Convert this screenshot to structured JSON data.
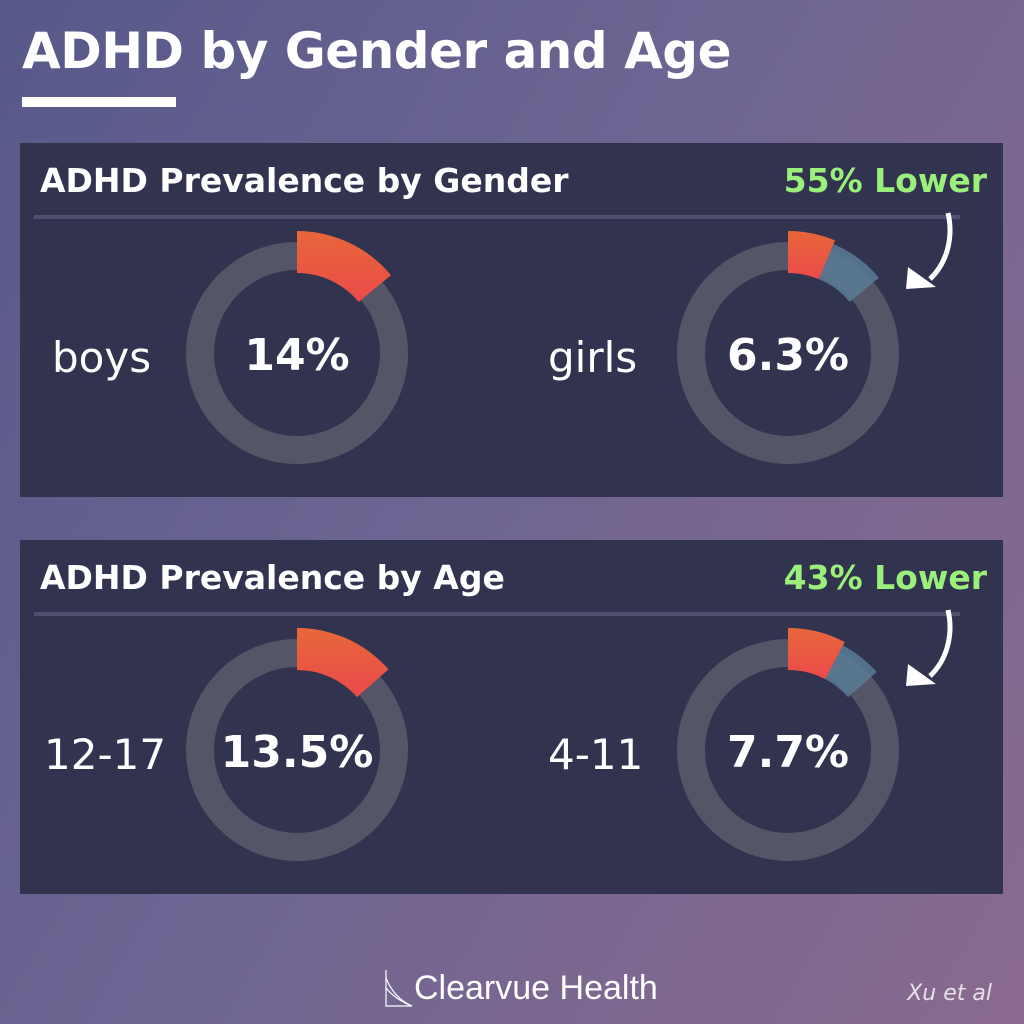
{
  "header": {
    "title": "ADHD by Gender and Age"
  },
  "colors": {
    "accent_green": "#9af07a",
    "segment_red": "#ea4a4a",
    "segment_orange": "#e8673a",
    "ghost_blue": "#5a7d96",
    "track": "#545566",
    "panel": "#32334f"
  },
  "chart_data": [
    {
      "type": "pie",
      "variant": "donut",
      "title": "ADHD Prevalence by Gender",
      "annotation": "55% Lower",
      "categories": [
        "boys",
        "girls"
      ],
      "values": [
        14,
        6.3
      ],
      "value_labels": [
        "14%",
        "6.3%"
      ],
      "unit": "%",
      "max": 100,
      "comparison_ghost": 14
    },
    {
      "type": "pie",
      "variant": "donut",
      "title": "ADHD Prevalence by Age",
      "annotation": "43% Lower",
      "categories": [
        "12-17",
        "4-11"
      ],
      "values": [
        13.5,
        7.7
      ],
      "value_labels": [
        "13.5%",
        "7.7%"
      ],
      "unit": "%",
      "max": 100,
      "comparison_ghost": 13.5
    }
  ],
  "footer": {
    "brand": "Clearvue Health",
    "citation": "Xu et al"
  }
}
